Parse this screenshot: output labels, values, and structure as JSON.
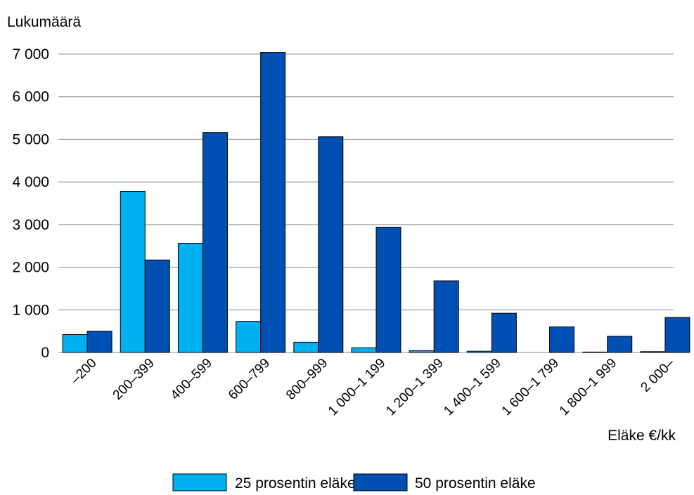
{
  "chart_data": {
    "type": "bar",
    "ylabel": "Lukumäärä",
    "xlabel": "Eläke €/kk",
    "ylim": [
      0,
      7000
    ],
    "yticks": [
      0,
      1000,
      2000,
      3000,
      4000,
      5000,
      6000,
      7000
    ],
    "ytick_labels": [
      "0",
      "1 000",
      "2 000",
      "3 000",
      "4 000",
      "5 000",
      "6 000",
      "7 000"
    ],
    "grid": true,
    "legend_position": "bottom-center",
    "categories": [
      "–200",
      "200–399",
      "400–599",
      "600–799",
      "800–999",
      "1 000–1 199",
      "1 200–1 399",
      "1 400–1 599",
      "1 600–1 799",
      "1 800–1 999",
      "2 000–"
    ],
    "series": [
      {
        "name": "25 prosentin eläke",
        "color": "#00b0f0",
        "values": [
          420,
          3780,
          2560,
          730,
          240,
          110,
          40,
          30,
          0,
          10,
          20
        ]
      },
      {
        "name": "50 prosentin eläke",
        "color": "#0050b4",
        "values": [
          500,
          2170,
          5160,
          7040,
          5060,
          2940,
          1680,
          920,
          600,
          380,
          820
        ]
      }
    ]
  }
}
